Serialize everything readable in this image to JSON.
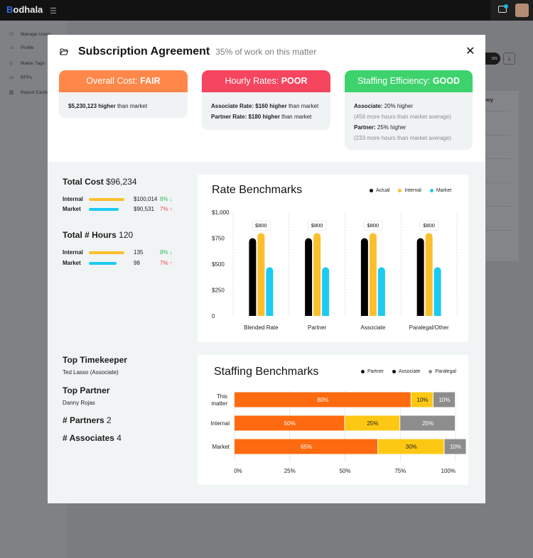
{
  "app": {
    "logo_prefix": "B",
    "logo_rest": "odhala",
    "sidebar": [
      {
        "label": "Manage Users",
        "icon": "users-icon"
      },
      {
        "label": "Profile",
        "icon": "user-icon"
      },
      {
        "label": "Matter Tags",
        "icon": "tag-icon"
      },
      {
        "label": "RFPs",
        "icon": "folder-icon"
      },
      {
        "label": "Report Cards",
        "icon": "chart-icon"
      }
    ],
    "bg_button_label": "sis",
    "bg_column_header": "ency"
  },
  "modal": {
    "title": "Subscription Agreement",
    "subtitle": "35% of work on this matter",
    "ratings": [
      {
        "label": "Overall Cost:",
        "value": "FAIR",
        "color": "#fe8749",
        "lines": [
          {
            "bold": "$5,230,123 higher",
            "text": " than market"
          }
        ]
      },
      {
        "label": "Hourly Rates:",
        "value": "POOR",
        "color": "#f6455f",
        "lines": [
          {
            "bold": "Associate Rate: $160 higher",
            "text": " than market"
          },
          {
            "bold": "Partner Rate: $180 higher",
            "text": " than market"
          }
        ]
      },
      {
        "label": "Staffing Efficiency:",
        "value": "GOOD",
        "color": "#3ed26d",
        "lines": [
          {
            "bold": "Associate:",
            "text": " 20% higher"
          },
          {
            "muted": "(456 more hours than market average)"
          },
          {
            "bold": "Partner:",
            "text": " 25% higher"
          },
          {
            "muted": "(233 more hours than market average)"
          }
        ]
      }
    ],
    "total_cost": {
      "label": "Total Cost",
      "value": "$96,234",
      "rows": [
        {
          "label": "Internal",
          "value": "$100,014",
          "pct": "8%",
          "dir": "down",
          "color": "#fbbf2c",
          "fill": 1.0
        },
        {
          "label": "Market",
          "value": "$90,531",
          "pct": "7%",
          "dir": "up",
          "color": "#1ccbf2",
          "fill": 0.84
        }
      ]
    },
    "total_hours": {
      "label": "Total # Hours",
      "value": "120",
      "rows": [
        {
          "label": "Internal",
          "value": "135",
          "pct": "8%",
          "dir": "down",
          "color": "#fbbf2c",
          "fill": 1.0
        },
        {
          "label": "Market",
          "value": "98",
          "pct": "7%",
          "dir": "up",
          "color": "#1ccbf2",
          "fill": 0.78
        }
      ]
    },
    "top_timekeeper": {
      "label": "Top Timekeeper",
      "value": "Ted Lasso (Associate)"
    },
    "top_partner": {
      "label": "Top Partner",
      "value": "Danny Rojas"
    },
    "partners": {
      "label": "# Partners",
      "value": "2"
    },
    "associates": {
      "label": "# Associates",
      "value": "4"
    }
  },
  "chart_data": [
    {
      "type": "bar",
      "title": "Rate Benchmarks",
      "categories": [
        "Blended Rate",
        "Partner",
        "Associate",
        "Paralegal/Other"
      ],
      "series": [
        {
          "name": "Actual",
          "color": "#000000",
          "values": [
            750,
            750,
            750,
            750
          ]
        },
        {
          "name": "Internal",
          "color": "#fbbf2c",
          "values": [
            800,
            800,
            800,
            800
          ]
        },
        {
          "name": "Market",
          "color": "#1ccbf2",
          "values": [
            470,
            470,
            470,
            470
          ]
        }
      ],
      "data_labels": [
        "$800",
        "$800",
        "$800",
        "$800"
      ],
      "yticks": [
        "$1,000",
        "$750",
        "$500",
        "$250",
        "0"
      ],
      "ylim": [
        0,
        1000
      ],
      "grid": true,
      "legend": "top-right"
    },
    {
      "type": "bar",
      "orientation": "horizontal",
      "stacked": true,
      "title": "Staffing Benchmarks",
      "categories": [
        "This matter",
        "Internal",
        "Market"
      ],
      "series": [
        {
          "name": "Partner",
          "color": "#fe6a0f",
          "values": [
            80,
            50,
            65
          ]
        },
        {
          "name": "Associate",
          "color": "#fdc814",
          "values": [
            10,
            25,
            30
          ]
        },
        {
          "name": "Paralegal",
          "color": "#8d8d8d",
          "values": [
            10,
            25,
            10
          ]
        }
      ],
      "xticks": [
        "0%",
        "25%",
        "50%",
        "75%",
        "100%"
      ],
      "xlim": [
        0,
        100
      ],
      "grid": true,
      "legend": "top-right"
    }
  ]
}
